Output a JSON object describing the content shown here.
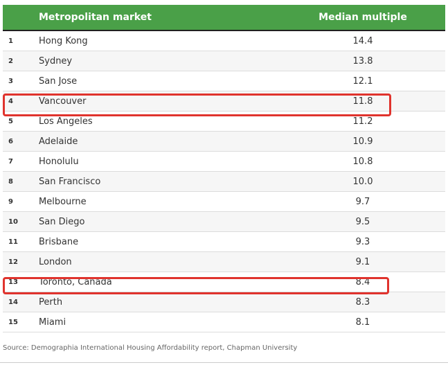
{
  "table": {
    "headers": {
      "market": "Metropolitan market",
      "multiple": "Median multiple"
    },
    "rows": [
      {
        "rank": "1",
        "market": "Hong Kong",
        "multiple": "14.4"
      },
      {
        "rank": "2",
        "market": "Sydney",
        "multiple": "13.8"
      },
      {
        "rank": "3",
        "market": "San Jose",
        "multiple": "12.1"
      },
      {
        "rank": "4",
        "market": "Vancouver",
        "multiple": "11.8"
      },
      {
        "rank": "5",
        "market": "Los Angeles",
        "multiple": "11.2"
      },
      {
        "rank": "6",
        "market": "Adelaide",
        "multiple": "10.9"
      },
      {
        "rank": "7",
        "market": "Honolulu",
        "multiple": "10.8"
      },
      {
        "rank": "8",
        "market": "San Francisco",
        "multiple": "10.0"
      },
      {
        "rank": "9",
        "market": "Melbourne",
        "multiple": "9.7"
      },
      {
        "rank": "10",
        "market": "San Diego",
        "multiple": "9.5"
      },
      {
        "rank": "11",
        "market": "Brisbane",
        "multiple": "9.3"
      },
      {
        "rank": "12",
        "market": "London",
        "multiple": "9.1"
      },
      {
        "rank": "13",
        "market": "Toronto, Canada",
        "multiple": "8.4"
      },
      {
        "rank": "14",
        "market": "Perth",
        "multiple": "8.3"
      },
      {
        "rank": "15",
        "market": "Miami",
        "multiple": "8.1"
      }
    ],
    "highlighted_ranks": [
      "4",
      "13"
    ]
  },
  "source": "Source: Demographia International Housing Affordability report, Chapman University",
  "colors": {
    "header_bg": "#4aa048",
    "highlight": "#e0332d"
  }
}
